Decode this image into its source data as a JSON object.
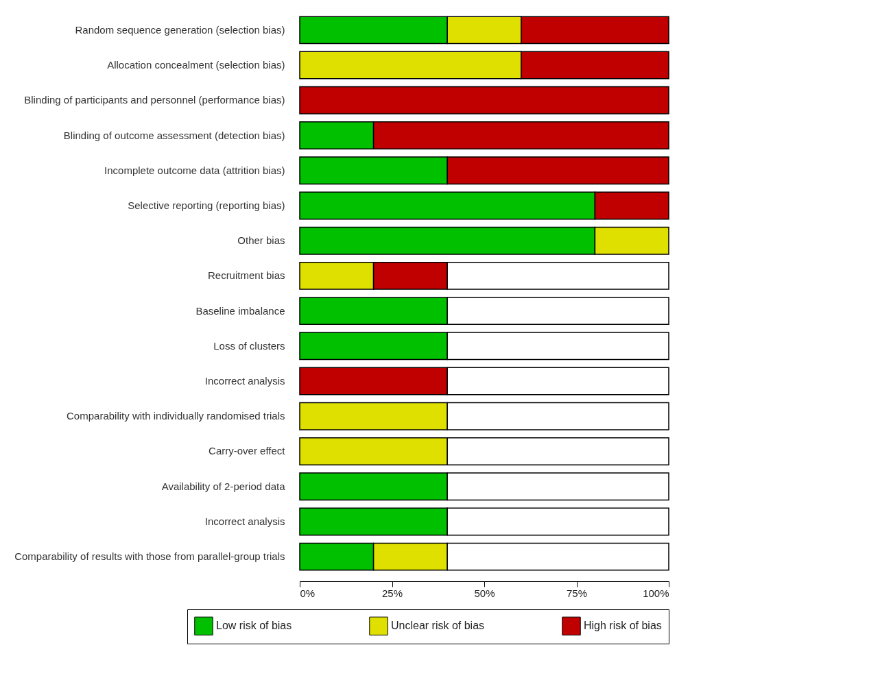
{
  "chart_data": {
    "type": "bar",
    "orientation": "horizontal",
    "stacked": true,
    "grid": false,
    "legend": "bottom",
    "categories": [
      "Random sequence generation (selection bias)",
      "Allocation concealment (selection bias)",
      "Blinding of participants and personnel (performance bias)",
      "Blinding of outcome assessment (detection bias)",
      "Incomplete outcome data (attrition bias)",
      "Selective reporting (reporting bias)",
      "Other bias",
      "Recruitment bias",
      "Baseline imbalance",
      "Loss of clusters",
      "Incorrect analysis",
      "Comparability with individually randomised trials",
      "Carry-over effect",
      "Availability of 2-period data",
      "Incorrect analysis",
      "Comparability of results with those from parallel-group trials"
    ],
    "xlim": [
      0,
      100
    ],
    "xticks": [
      {
        "value": 0,
        "label": "0%"
      },
      {
        "value": 25,
        "label": "25%"
      },
      {
        "value": 50,
        "label": "50%"
      },
      {
        "value": 75,
        "label": "75%"
      },
      {
        "value": 100,
        "label": "100%"
      }
    ],
    "series": [
      {
        "name": "Low risk of bias",
        "color": "#00c000",
        "values": [
          40,
          0,
          0,
          20,
          40,
          80,
          80,
          0,
          40,
          40,
          0,
          0,
          0,
          40,
          40,
          20
        ]
      },
      {
        "name": "Unclear risk of bias",
        "color": "#e0e000",
        "values": [
          20,
          60,
          0,
          0,
          0,
          0,
          20,
          20,
          0,
          0,
          0,
          40,
          40,
          0,
          0,
          20
        ]
      },
      {
        "name": "High risk of bias",
        "color": "#c00000",
        "values": [
          40,
          40,
          100,
          80,
          60,
          20,
          0,
          20,
          0,
          0,
          40,
          0,
          0,
          0,
          0,
          0
        ]
      },
      {
        "color": "#ffffff",
        "values": [
          0,
          0,
          0,
          0,
          0,
          0,
          0,
          60,
          60,
          60,
          60,
          60,
          60,
          60,
          60,
          60
        ]
      }
    ]
  }
}
